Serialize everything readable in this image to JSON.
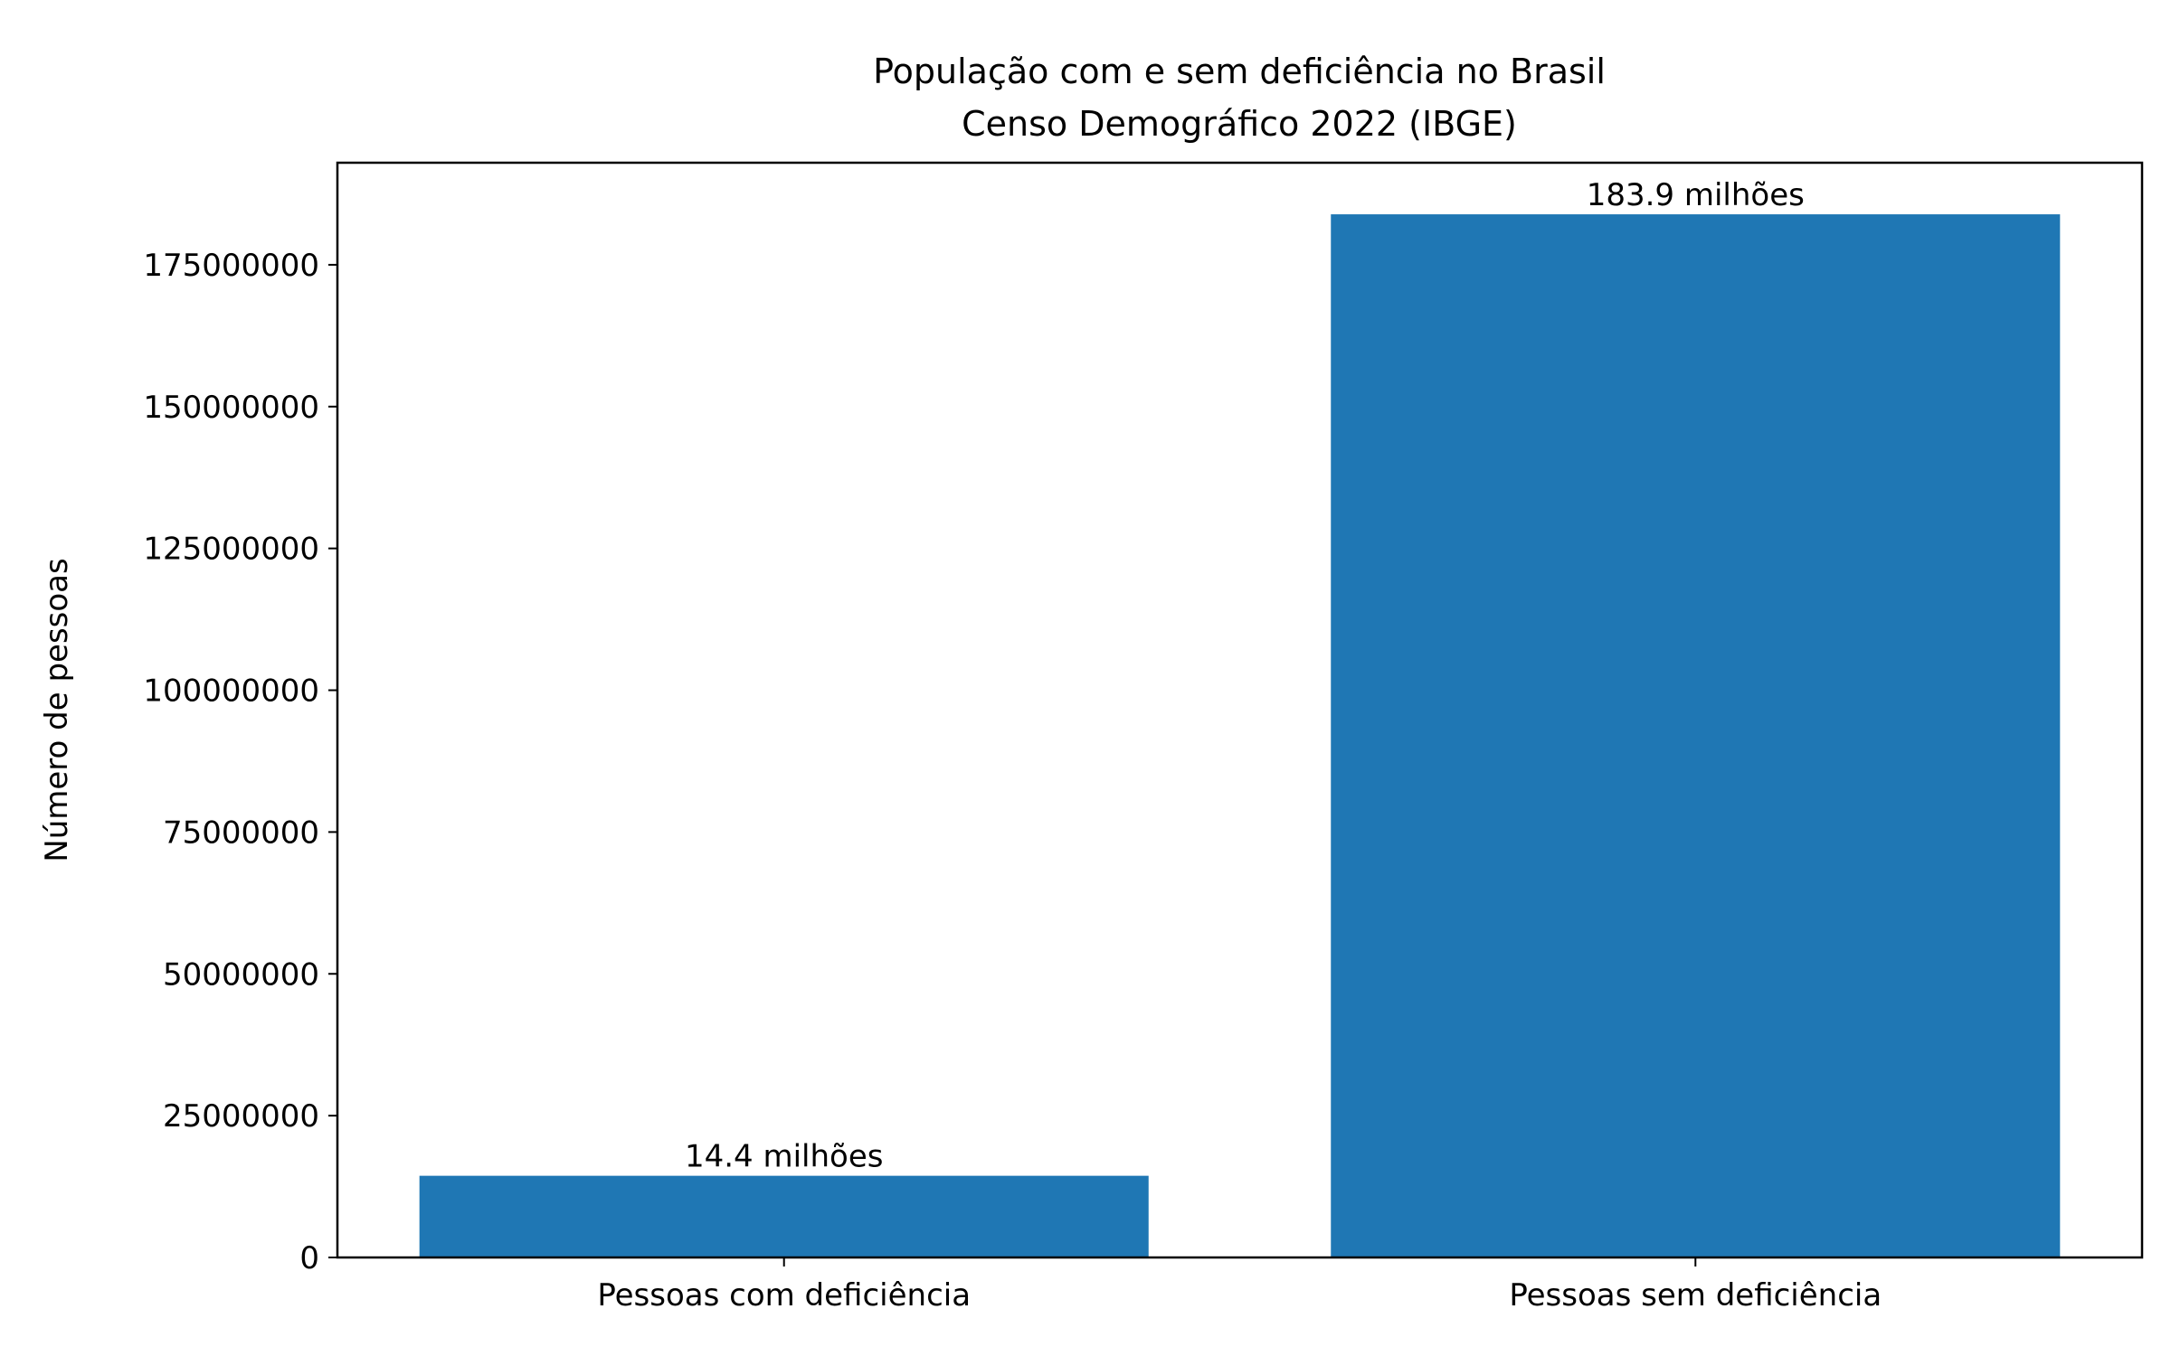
{
  "chart_data": {
    "type": "bar",
    "title": "População com e sem deficiência no Brasil",
    "subtitle": "Censo Demográfico 2022 (IBGE)",
    "xlabel": "",
    "ylabel": "Número de pessoas",
    "categories": [
      "Pessoas com deficiência",
      "Pessoas sem deficiência"
    ],
    "values": [
      14400000,
      183900000
    ],
    "data_labels": [
      "14.4 milhões",
      "183.9 milhões"
    ],
    "ylim": [
      0,
      192995000
    ],
    "yticks": [
      0,
      25000000,
      50000000,
      75000000,
      100000000,
      125000000,
      150000000,
      175000000
    ],
    "ytick_labels": [
      "0",
      "25000000",
      "50000000",
      "75000000",
      "100000000",
      "125000000",
      "150000000",
      "175000000"
    ],
    "bar_color": "#1f77b4",
    "grid": false,
    "legend": "none"
  }
}
